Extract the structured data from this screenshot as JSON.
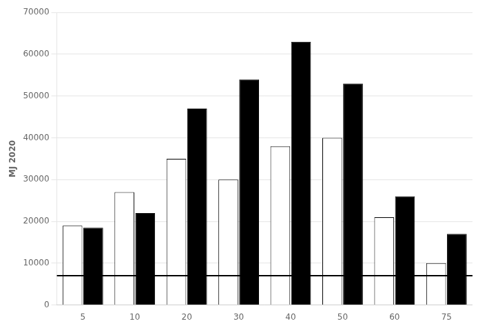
{
  "chart_data": {
    "type": "bar",
    "y_label": "MJ 2020",
    "categories": [
      "5",
      "10",
      "20",
      "30",
      "40",
      "50",
      "60",
      "75"
    ],
    "series": [
      {
        "color": "white",
        "values": [
          19000,
          27000,
          35000,
          30000,
          38000,
          40000,
          21000,
          10000
        ]
      },
      {
        "color": "black",
        "values": [
          18500,
          22000,
          47000,
          54000,
          63000,
          53000,
          26000,
          17000
        ]
      }
    ],
    "baseline": 7000,
    "ylim": [
      0,
      70000
    ],
    "yticks": [
      0,
      10000,
      20000,
      30000,
      40000,
      50000,
      60000,
      70000
    ],
    "grid": true
  }
}
